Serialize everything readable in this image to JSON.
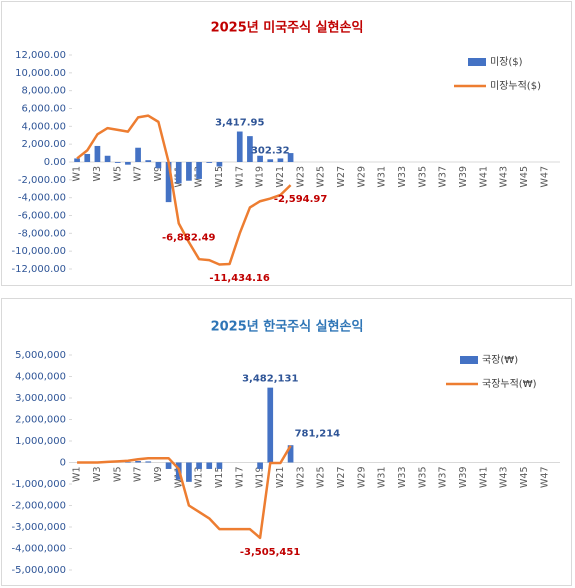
{
  "chart_data": [
    {
      "type": "combo",
      "title": "2025년 미국주식 실현손익",
      "categories": [
        "W1",
        null,
        "W3",
        null,
        "W5",
        null,
        "W7",
        null,
        "W9",
        null,
        "W11",
        null,
        "W13",
        null,
        "W15",
        null,
        "W17",
        null,
        "W19",
        null,
        "W21",
        null,
        "W23",
        null,
        "W25",
        null,
        "W27",
        null,
        "W29",
        null,
        "W31",
        null,
        "W33",
        null,
        "W35",
        null,
        "W37",
        null,
        "W39",
        null,
        "W41",
        null,
        "W43",
        null,
        "W45",
        null,
        "W47",
        null
      ],
      "ylim": [
        -12000,
        12000
      ],
      "yticks": [
        {
          "value": -12000,
          "label": "-12,000.00"
        },
        {
          "value": -10000,
          "label": "-10,000.00"
        },
        {
          "value": -8000,
          "label": "-8,000.00"
        },
        {
          "value": -6000,
          "label": "-6,000.00"
        },
        {
          "value": -4000,
          "label": "-4,000.00"
        },
        {
          "value": -2000,
          "label": "-2,000.00"
        },
        {
          "value": 0,
          "label": "0.00"
        },
        {
          "value": 2000,
          "label": "2,000.00"
        },
        {
          "value": 4000,
          "label": "4,000.00"
        },
        {
          "value": 6000,
          "label": "6,000.00"
        },
        {
          "value": 8000,
          "label": "8,000.00"
        },
        {
          "value": 10000,
          "label": "10,000.00"
        },
        {
          "value": 12000,
          "label": "12,000.00"
        }
      ],
      "series": [
        {
          "name": "미장($)",
          "type": "bar",
          "color": "#4472c4",
          "values": [
            400,
            900,
            1800,
            700,
            -100,
            -300,
            1600,
            200,
            -700,
            -4500,
            -2400,
            -2100,
            -1900,
            -100,
            -500,
            0,
            3417.95,
            2900,
            700,
            302.32,
            400,
            1000,
            null,
            null,
            null,
            null,
            null,
            null,
            null,
            null,
            null,
            null,
            null,
            null,
            null,
            null,
            null,
            null,
            null,
            null,
            null,
            null,
            null,
            null,
            null,
            null,
            null,
            null
          ],
          "value_labels": [
            null,
            null,
            null,
            null,
            null,
            null,
            null,
            null,
            null,
            null,
            null,
            null,
            null,
            null,
            null,
            null,
            "3,417.95",
            null,
            null,
            "302.32",
            null,
            null,
            null,
            null,
            null,
            null,
            null,
            null,
            null,
            null,
            null,
            null,
            null,
            null,
            null,
            null,
            null,
            null,
            null,
            null,
            null,
            null,
            null,
            null,
            null,
            null,
            null,
            null
          ]
        },
        {
          "name": "미장누적($)",
          "type": "line",
          "color": "#ed7d31",
          "values": [
            400,
            1300,
            3100,
            3800,
            3600,
            3400,
            5000,
            5200,
            4500,
            0,
            -6882.49,
            -9000,
            -10900,
            -11000,
            -11500,
            -11434.16,
            -8000,
            -5100,
            -4400,
            -4100,
            -3700,
            -2594.97,
            null,
            null,
            null,
            null,
            null,
            null,
            null,
            null,
            null,
            null,
            null,
            null,
            null,
            null,
            null,
            null,
            null,
            null,
            null,
            null,
            null,
            null,
            null,
            null,
            null,
            null
          ],
          "value_labels": [
            null,
            null,
            null,
            null,
            null,
            null,
            null,
            null,
            null,
            null,
            "-6,882.49",
            null,
            null,
            null,
            null,
            "-11,434.16",
            null,
            null,
            null,
            null,
            null,
            "-2,594.97",
            null,
            null,
            null,
            null,
            null,
            null,
            null,
            null,
            null,
            null,
            null,
            null,
            null,
            null,
            null,
            null,
            null,
            null,
            null,
            null,
            null,
            null,
            null,
            null,
            null,
            null
          ]
        }
      ]
    },
    {
      "type": "combo",
      "title": "2025년 한국주식 실현손익",
      "categories": [
        "W1",
        null,
        "W3",
        null,
        "W5",
        null,
        "W7",
        null,
        "W9",
        null,
        "W11",
        null,
        "W13",
        null,
        "W15",
        null,
        "W17",
        null,
        "W19",
        null,
        "W21",
        null,
        "W23",
        null,
        "W25",
        null,
        "W27",
        null,
        "W29",
        null,
        "W31",
        null,
        "W33",
        null,
        "W35",
        null,
        "W37",
        null,
        "W39",
        null,
        "W41",
        null,
        "W43",
        null,
        "W45",
        null,
        "W47",
        null
      ],
      "ylim": [
        -5000000,
        5000000
      ],
      "yticks": [
        {
          "value": -5000000,
          "label": "-5,000,000"
        },
        {
          "value": -4000000,
          "label": "-4,000,000"
        },
        {
          "value": -3000000,
          "label": "-3,000,000"
        },
        {
          "value": -2000000,
          "label": "-2,000,000"
        },
        {
          "value": -1000000,
          "label": "-1,000,000"
        },
        0,
        {
          "value": 1000000,
          "label": "1,000,000"
        },
        {
          "value": 2000000,
          "label": "2,000,000"
        },
        {
          "value": 3000000,
          "label": "3,000,000"
        },
        {
          "value": 4000000,
          "label": "4,000,000"
        },
        {
          "value": 5000000,
          "label": "5,000,000"
        }
      ],
      "series": [
        {
          "name": "국장(₩)",
          "type": "bar",
          "color": "#4472c4",
          "values": [
            0,
            0,
            0,
            30000,
            20000,
            30000,
            70000,
            50000,
            0,
            -300000,
            -800000,
            -900000,
            -300000,
            -300000,
            -300000,
            0,
            0,
            0,
            -300000,
            3482131,
            0,
            804534,
            null,
            null,
            null,
            null,
            null,
            null,
            null,
            null,
            null,
            null,
            null,
            null,
            null,
            null,
            null,
            null,
            null,
            null,
            null,
            null,
            null,
            null,
            null,
            null,
            null,
            null
          ],
          "value_labels": [
            null,
            null,
            null,
            null,
            null,
            null,
            null,
            null,
            null,
            null,
            null,
            null,
            null,
            null,
            null,
            null,
            null,
            null,
            null,
            "3,482,131",
            null,
            null,
            null,
            null,
            null,
            null,
            null,
            null,
            null,
            null,
            null,
            null,
            null,
            null,
            null,
            null,
            null,
            null,
            null,
            null,
            null,
            null,
            null,
            null,
            null,
            null,
            null,
            null
          ]
        },
        {
          "name": "국장누적(₩)",
          "type": "line",
          "color": "#ed7d31",
          "values": [
            0,
            0,
            0,
            30000,
            50000,
            80000,
            150000,
            200000,
            200000,
            200000,
            -300000,
            -2000000,
            -2300000,
            -2600000,
            -3100000,
            -3100000,
            -3100000,
            -3100000,
            -3505451,
            -23320,
            -23320,
            781214,
            null,
            null,
            null,
            null,
            null,
            null,
            null,
            null,
            null,
            null,
            null,
            null,
            null,
            null,
            null,
            null,
            null,
            null,
            null,
            null,
            null,
            null,
            null,
            null,
            null,
            null
          ],
          "value_labels": [
            null,
            null,
            null,
            null,
            null,
            null,
            null,
            null,
            null,
            null,
            null,
            null,
            null,
            null,
            null,
            null,
            null,
            null,
            "-3,505,451",
            null,
            null,
            "781,214",
            null,
            null,
            null,
            null,
            null,
            null,
            null,
            null,
            null,
            null,
            null,
            null,
            null,
            null,
            null,
            null,
            null,
            null,
            null,
            null,
            null,
            null,
            null,
            null,
            null,
            null
          ]
        }
      ]
    }
  ]
}
